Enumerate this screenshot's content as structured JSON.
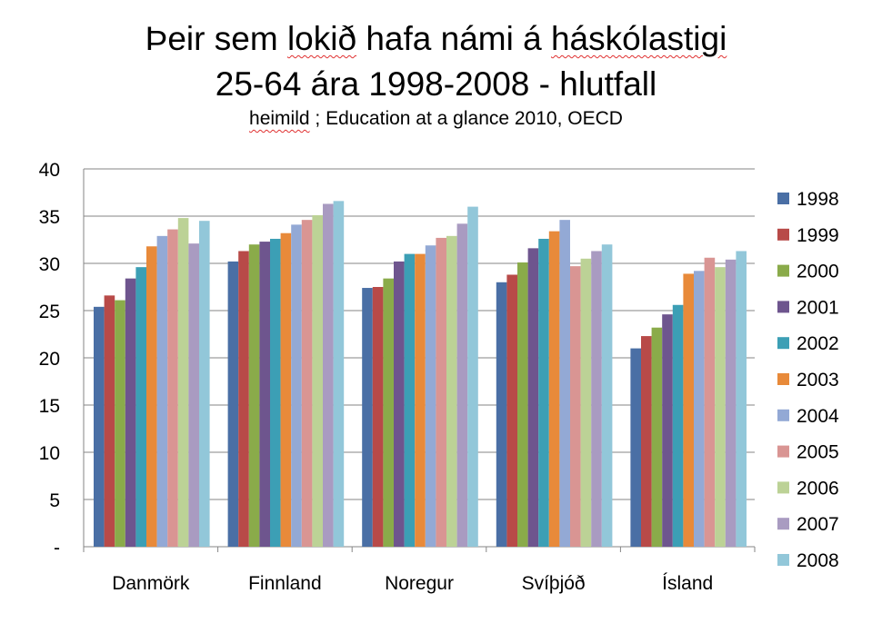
{
  "chart_data": {
    "type": "bar",
    "title_line1": "Þeir sem lokið hafa námi á háskólastigi",
    "title_line2": "25-64 ára 1998-2008  - hlutfall",
    "subtitle_word": "heimild",
    "subtitle_rest": " ; Education at a glance 2010, OECD",
    "categories": [
      "Danmörk",
      "Finnland",
      "Noregur",
      "Svíþjóð",
      "Ísland"
    ],
    "yticks": [
      "-",
      "5",
      "10",
      "15",
      "20",
      "25",
      "30",
      "35",
      "40"
    ],
    "ylim": [
      0,
      40
    ],
    "grid": true,
    "legend_position": "right",
    "series": [
      {
        "name": "1998",
        "color": "#4a6fa5",
        "values": [
          25.4,
          30.2,
          27.4,
          28.0,
          21.0
        ]
      },
      {
        "name": "1999",
        "color": "#b84a48",
        "values": [
          26.6,
          31.3,
          27.5,
          28.8,
          22.3
        ]
      },
      {
        "name": "2000",
        "color": "#8aab4a",
        "values": [
          26.1,
          32.0,
          28.4,
          30.1,
          23.2
        ]
      },
      {
        "name": "2001",
        "color": "#6e558e",
        "values": [
          28.4,
          32.3,
          30.2,
          31.6,
          24.6
        ]
      },
      {
        "name": "2002",
        "color": "#3c9fb5",
        "values": [
          29.6,
          32.6,
          31.0,
          32.6,
          25.6
        ]
      },
      {
        "name": "2003",
        "color": "#e88a3a",
        "values": [
          31.8,
          33.2,
          31.0,
          33.4,
          28.9
        ]
      },
      {
        "name": "2004",
        "color": "#93a9d5",
        "values": [
          32.9,
          34.1,
          31.9,
          34.6,
          29.2
        ]
      },
      {
        "name": "2005",
        "color": "#d99593",
        "values": [
          33.6,
          34.6,
          32.7,
          29.7,
          30.6
        ]
      },
      {
        "name": "2006",
        "color": "#bcd296",
        "values": [
          34.8,
          35.1,
          32.9,
          30.5,
          29.6
        ]
      },
      {
        "name": "2007",
        "color": "#a99bc1",
        "values": [
          32.1,
          36.3,
          34.2,
          31.3,
          30.4
        ]
      },
      {
        "name": "2008",
        "color": "#92c7d9",
        "values": [
          34.5,
          36.6,
          36.0,
          32.0,
          31.3
        ]
      }
    ]
  }
}
